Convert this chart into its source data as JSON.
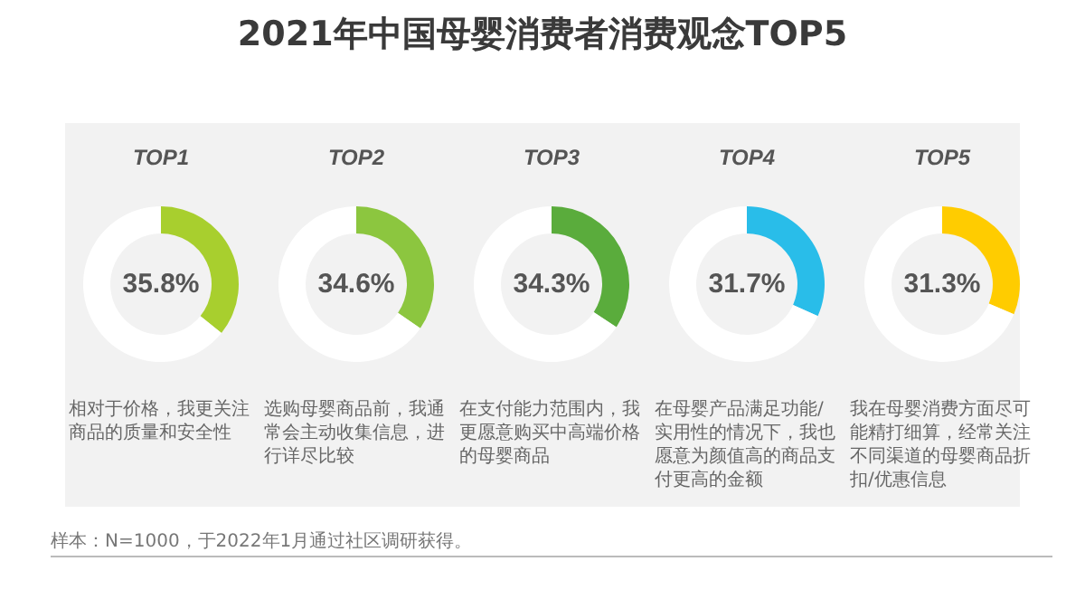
{
  "chart_data": [
    {
      "type": "other",
      "title": "2021年中国母婴消费者消费观念TOP5",
      "annotations": [
        "样本：N=1000，于2022年1月通过社区调研获得。"
      ]
    },
    {
      "type": "donut",
      "title": "TOP1",
      "categories": [
        null,
        null
      ],
      "values": [
        35.8,
        64.2
      ],
      "colors": [
        "#a8cf2e",
        "#ffffff"
      ],
      "value_labels": [
        "35.8%",
        null
      ],
      "annotations": [
        "相对于价格，我更关注商品的质量和安全性"
      ]
    },
    {
      "type": "donut",
      "title": "TOP2",
      "categories": [
        null,
        null
      ],
      "values": [
        34.6,
        65.4
      ],
      "colors": [
        "#8cc63f",
        "#ffffff"
      ],
      "value_labels": [
        "34.6%",
        null
      ],
      "annotations": [
        "选购母婴商品前，我通常会主动收集信息，进行详尽比较"
      ]
    },
    {
      "type": "donut",
      "title": "TOP3",
      "categories": [
        null,
        null
      ],
      "values": [
        34.3,
        65.7
      ],
      "colors": [
        "#5aac3c",
        "#ffffff"
      ],
      "value_labels": [
        "34.3%",
        null
      ],
      "annotations": [
        "在支付能力范围内，我更愿意购买中高端价格的母婴商品"
      ]
    },
    {
      "type": "donut",
      "title": "TOP4",
      "categories": [
        null,
        null
      ],
      "values": [
        31.7,
        68.3
      ],
      "colors": [
        "#29bde9",
        "#ffffff"
      ],
      "value_labels": [
        "31.7%",
        null
      ],
      "annotations": [
        "在母婴产品满足功能/实用性的情况下，我也愿意为颜值高的商品支付更高的金额"
      ]
    },
    {
      "type": "donut",
      "title": "TOP5",
      "categories": [
        null,
        null
      ],
      "values": [
        31.3,
        68.7
      ],
      "colors": [
        "#ffcc00",
        "#ffffff"
      ],
      "value_labels": [
        "31.3%",
        null
      ],
      "annotations": [
        "我在母婴消费方面尽可能精打细算，经常关注不同渠道的母婴商品折扣/优惠信息"
      ]
    }
  ]
}
